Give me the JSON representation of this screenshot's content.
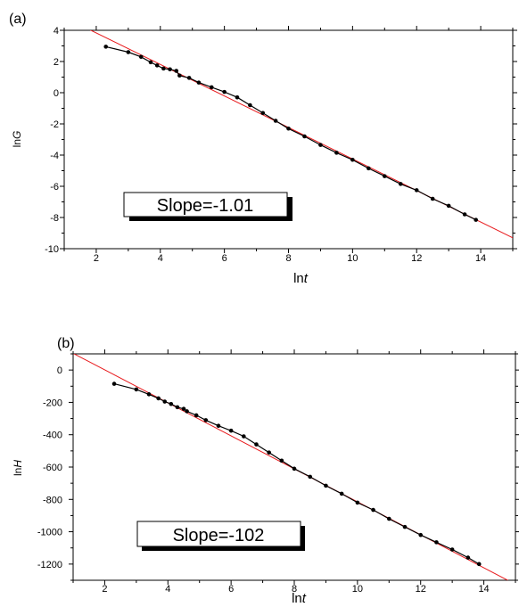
{
  "chart_data": [
    {
      "panel_label": "(a)",
      "type": "scatter",
      "xlabel": "ln",
      "xlabel_italic": "t",
      "ylabel": "ln",
      "ylabel_italic": "G",
      "xlim": [
        1,
        15
      ],
      "ylim": [
        -10,
        4
      ],
      "xticks": [
        2,
        4,
        6,
        8,
        10,
        12,
        14
      ],
      "yticks": [
        4,
        2,
        0,
        -2,
        -4,
        -6,
        -8,
        -10
      ],
      "annotation": "Slope=-1.01",
      "fit_line": {
        "slope": -1.01,
        "intercept": 5.85,
        "color": "#e8191c"
      },
      "series": [
        {
          "marker_color": "#000000",
          "points": [
            [
              2.3,
              2.95
            ],
            [
              3.0,
              2.6
            ],
            [
              3.4,
              2.3
            ],
            [
              3.7,
              1.95
            ],
            [
              3.9,
              1.75
            ],
            [
              4.1,
              1.55
            ],
            [
              4.3,
              1.5
            ],
            [
              4.5,
              1.4
            ],
            [
              4.6,
              1.1
            ],
            [
              4.9,
              0.95
            ],
            [
              5.2,
              0.65
            ],
            [
              5.6,
              0.35
            ],
            [
              6.0,
              0.05
            ],
            [
              6.4,
              -0.3
            ],
            [
              6.8,
              -0.8
            ],
            [
              7.2,
              -1.3
            ],
            [
              7.6,
              -1.8
            ],
            [
              8.0,
              -2.3
            ],
            [
              8.5,
              -2.8
            ],
            [
              9.0,
              -3.35
            ],
            [
              9.5,
              -3.85
            ],
            [
              10.0,
              -4.3
            ],
            [
              10.5,
              -4.85
            ],
            [
              11.0,
              -5.35
            ],
            [
              11.5,
              -5.85
            ],
            [
              12.0,
              -6.25
            ],
            [
              12.5,
              -6.8
            ],
            [
              13.0,
              -7.25
            ],
            [
              13.5,
              -7.8
            ],
            [
              13.85,
              -8.15
            ]
          ]
        }
      ]
    },
    {
      "panel_label": "(b)",
      "type": "scatter",
      "xlabel": "ln",
      "xlabel_italic": "t",
      "ylabel": "ln",
      "ylabel_italic": "H",
      "xlim": [
        1,
        15
      ],
      "ylim": [
        -1300,
        100
      ],
      "xticks": [
        2,
        4,
        6,
        8,
        10,
        12,
        14
      ],
      "yticks": [
        0,
        -200,
        -400,
        -600,
        -800,
        -1000,
        -1200
      ],
      "annotation": "Slope=-102",
      "fit_line": {
        "slope": -102,
        "intercept": 205,
        "color": "#e8191c"
      },
      "series": [
        {
          "marker_color": "#000000",
          "points": [
            [
              2.3,
              -85
            ],
            [
              3.0,
              -120
            ],
            [
              3.4,
              -150
            ],
            [
              3.7,
              -175
            ],
            [
              3.9,
              -195
            ],
            [
              4.1,
              -210
            ],
            [
              4.3,
              -230
            ],
            [
              4.5,
              -240
            ],
            [
              4.6,
              -255
            ],
            [
              4.9,
              -280
            ],
            [
              5.2,
              -310
            ],
            [
              5.6,
              -345
            ],
            [
              6.0,
              -375
            ],
            [
              6.4,
              -410
            ],
            [
              6.8,
              -460
            ],
            [
              7.2,
              -510
            ],
            [
              7.6,
              -560
            ],
            [
              8.0,
              -610
            ],
            [
              8.5,
              -660
            ],
            [
              9.0,
              -715
            ],
            [
              9.5,
              -765
            ],
            [
              10.0,
              -820
            ],
            [
              10.5,
              -865
            ],
            [
              11.0,
              -920
            ],
            [
              11.5,
              -970
            ],
            [
              12.0,
              -1020
            ],
            [
              12.5,
              -1065
            ],
            [
              13.0,
              -1110
            ],
            [
              13.5,
              -1160
            ],
            [
              13.85,
              -1200
            ]
          ]
        }
      ]
    }
  ]
}
